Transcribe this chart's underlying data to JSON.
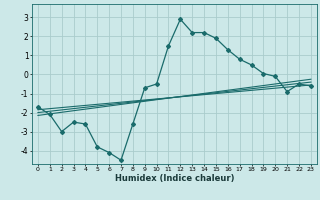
{
  "title": "",
  "xlabel": "Humidex (Indice chaleur)",
  "background_color": "#cce8e8",
  "grid_color": "#aacccc",
  "line_color": "#1a6b6b",
  "xlim": [
    -0.5,
    23.5
  ],
  "ylim": [
    -4.7,
    3.7
  ],
  "yticks": [
    -4,
    -3,
    -2,
    -1,
    0,
    1,
    2,
    3
  ],
  "xticks": [
    0,
    1,
    2,
    3,
    4,
    5,
    6,
    7,
    8,
    9,
    10,
    11,
    12,
    13,
    14,
    15,
    16,
    17,
    18,
    19,
    20,
    21,
    22,
    23
  ],
  "main_line_x": [
    0,
    1,
    2,
    3,
    4,
    5,
    6,
    7,
    8,
    9,
    10,
    11,
    12,
    13,
    14,
    15,
    16,
    17,
    18,
    19,
    20,
    21,
    22,
    23
  ],
  "main_line_y": [
    -1.7,
    -2.1,
    -3.0,
    -2.5,
    -2.6,
    -3.8,
    -4.1,
    -4.5,
    -2.6,
    -0.7,
    -0.5,
    1.5,
    2.9,
    2.2,
    2.2,
    1.9,
    1.3,
    0.8,
    0.5,
    0.05,
    -0.1,
    -0.9,
    -0.5,
    -0.6
  ],
  "reg_line1_x": [
    0,
    23
  ],
  "reg_line1_y": [
    -1.85,
    -0.55
  ],
  "reg_line2_x": [
    0,
    23
  ],
  "reg_line2_y": [
    -2.0,
    -0.4
  ],
  "reg_line3_x": [
    0,
    23
  ],
  "reg_line3_y": [
    -2.15,
    -0.25
  ]
}
